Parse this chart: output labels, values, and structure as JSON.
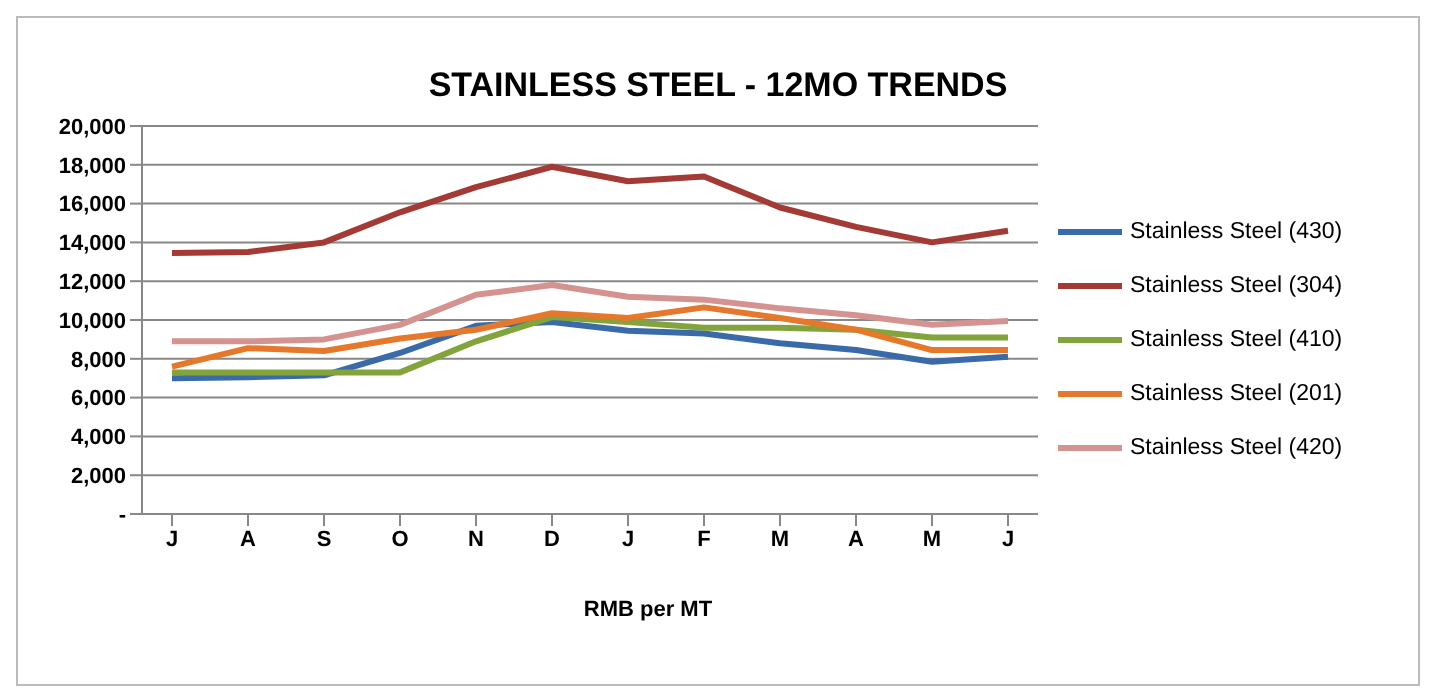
{
  "chart_data": {
    "type": "line",
    "title": "STAINLESS STEEL - 12MO TRENDS",
    "xlabel": "RMB per MT",
    "categories": [
      "J",
      "A",
      "S",
      "O",
      "N",
      "D",
      "J",
      "F",
      "M",
      "A",
      "M",
      "J"
    ],
    "series": [
      {
        "name": "Stainless Steel (430)",
        "color": "#3a6aa8",
        "values": [
          7000,
          7050,
          7150,
          8300,
          9700,
          9900,
          9450,
          9300,
          8800,
          8450,
          7850,
          8100
        ]
      },
      {
        "name": "Stainless Steel (304)",
        "color": "#a33a36",
        "values": [
          13450,
          13500,
          14000,
          15550,
          16850,
          17900,
          17150,
          17400,
          15800,
          14800,
          14000,
          14600
        ]
      },
      {
        "name": "Stainless Steel (410)",
        "color": "#83a33d",
        "values": [
          7300,
          7300,
          7300,
          7300,
          8900,
          10150,
          9900,
          9600,
          9600,
          9500,
          9100,
          9100
        ]
      },
      {
        "name": "Stainless Steel (201)",
        "color": "#e5782a",
        "values": [
          7600,
          8550,
          8400,
          9050,
          9500,
          10350,
          10100,
          10650,
          10100,
          9500,
          8450,
          8450
        ]
      },
      {
        "name": "Stainless Steel (420)",
        "color": "#d49390",
        "values": [
          8900,
          8900,
          9000,
          9750,
          11300,
          11800,
          11200,
          11050,
          10600,
          10250,
          9750,
          9950
        ]
      }
    ],
    "ylim": [
      0,
      20000
    ],
    "yticks": [
      {
        "value": 0,
        "label": "-"
      },
      {
        "value": 2000,
        "label": "2,000"
      },
      {
        "value": 4000,
        "label": "4,000"
      },
      {
        "value": 6000,
        "label": "6,000"
      },
      {
        "value": 8000,
        "label": "8,000"
      },
      {
        "value": 10000,
        "label": "10,000"
      },
      {
        "value": 12000,
        "label": "12,000"
      },
      {
        "value": 14000,
        "label": "14,000"
      },
      {
        "value": 16000,
        "label": "16,000"
      },
      {
        "value": 18000,
        "label": "18,000"
      },
      {
        "value": 20000,
        "label": "20,000"
      }
    ],
    "grid": "y",
    "legend": "right",
    "marker": "none",
    "line_style": "solid"
  }
}
